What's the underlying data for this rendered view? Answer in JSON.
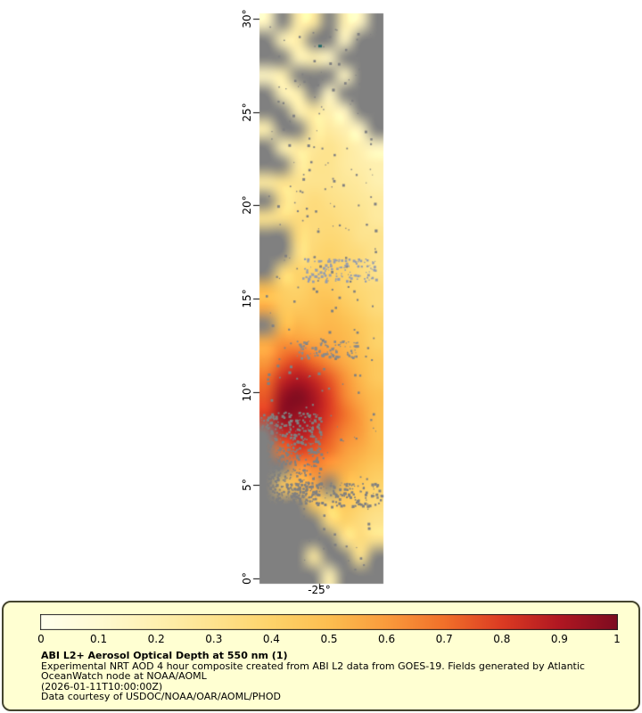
{
  "axes": {
    "lon_label": "-25°"
  },
  "legend": {
    "title": "ABI L2+ Aerosol Optical Depth at 550 nm (1)",
    "lines": [
      "Experimental NRT AOD 4 hour composite created from ABI L2 data from GOES-19. Fields generated by Atlantic",
      "OceanWatch node at NOAA/AOML",
      "(2026-01-11T10:00:00Z)",
      "Data courtesy of USDOC/NOAA/OAR/AOML/PHOD"
    ],
    "box_bg": "#FFFFD2",
    "box_border": "#44442E",
    "text_color": "#000000"
  },
  "chart_data": {
    "type": "heatmap",
    "title": "ABI L2+ Aerosol Optical Depth at 550 nm (1)",
    "subtitle": "Experimental NRT AOD 4 hour composite created from ABI L2 data from GOES-19. Fields generated by Atlantic OceanWatch node at NOAA/AOML",
    "timestamp": "(2026-01-11T10:00:00Z)",
    "credit": "Data courtesy of USDOC/NOAA/OAR/AOML/PHOD",
    "lat_ticks": [
      30,
      25,
      20,
      15,
      10,
      5,
      0
    ],
    "lat_tick_labels": [
      "30°",
      "25°",
      "20°",
      "15°",
      "10°",
      "5°",
      "0°"
    ],
    "lon_tick": -25,
    "lon_tick_label": "-25°",
    "lat_range": [
      0,
      30
    ],
    "colorbar": {
      "min": 0,
      "max": 1,
      "tick_labels": [
        "0",
        "0.1",
        "0.2",
        "0.3",
        "0.4",
        "0.5",
        "0.6",
        "0.7",
        "0.8",
        "0.9",
        "1"
      ]
    },
    "no_data_color": "#808080",
    "colormap_stops": [
      [
        0.0,
        "#FFFFEE"
      ],
      [
        0.1,
        "#FFFAD2"
      ],
      [
        0.2,
        "#FEF0B0"
      ],
      [
        0.3,
        "#FDE38E"
      ],
      [
        0.4,
        "#FDD36A"
      ],
      [
        0.5,
        "#FCBE50"
      ],
      [
        0.6,
        "#FA9B3C"
      ],
      [
        0.7,
        "#F1702A"
      ],
      [
        0.8,
        "#DC3B23"
      ],
      [
        0.9,
        "#B01722"
      ],
      [
        1.0,
        "#7E0C20"
      ]
    ],
    "grid": {
      "cols": 8,
      "rows": 32,
      "note": "Coarse AOD field sampled north (top) to south (bottom); null = no retrieval / cloud (gray).",
      "values": [
        [
          0.15,
          null,
          0.22,
          0.25,
          null,
          0.2,
          0.15,
          null
        ],
        [
          null,
          0.18,
          0.22,
          null,
          null,
          0.15,
          null,
          null
        ],
        [
          null,
          null,
          0.18,
          0.2,
          0.15,
          null,
          null,
          null
        ],
        [
          0.15,
          0.2,
          null,
          null,
          null,
          0.15,
          null,
          null
        ],
        [
          null,
          0.18,
          0.2,
          null,
          0.15,
          null,
          null,
          null
        ],
        [
          null,
          null,
          0.2,
          0.25,
          0.2,
          0.15,
          null,
          null
        ],
        [
          0.2,
          null,
          null,
          0.25,
          0.25,
          0.2,
          0.15,
          null
        ],
        [
          null,
          0.2,
          0.25,
          0.27,
          0.3,
          0.25,
          0.2,
          0.15
        ],
        [
          null,
          null,
          0.25,
          0.3,
          0.3,
          0.25,
          0.22,
          0.2
        ],
        [
          0.25,
          0.3,
          0.3,
          0.3,
          0.3,
          0.27,
          0.25,
          0.2
        ],
        [
          null,
          0.3,
          0.3,
          0.35,
          0.32,
          0.3,
          0.27,
          0.25
        ],
        [
          0.3,
          0.32,
          0.35,
          0.35,
          0.35,
          0.32,
          0.3,
          0.25
        ],
        [
          null,
          null,
          0.35,
          0.35,
          0.37,
          0.35,
          0.3,
          0.3
        ],
        [
          null,
          null,
          0.32,
          0.37,
          0.4,
          0.37,
          0.35,
          0.3
        ],
        [
          null,
          0.35,
          0.4,
          0.4,
          0.42,
          0.4,
          0.35,
          0.3
        ],
        [
          0.5,
          0.42,
          0.4,
          0.45,
          0.45,
          0.4,
          0.37,
          0.35
        ],
        [
          0.55,
          0.45,
          0.45,
          0.47,
          0.5,
          0.45,
          0.4,
          0.35
        ],
        [
          null,
          0.5,
          0.52,
          0.5,
          0.52,
          0.5,
          0.45,
          0.4
        ],
        [
          0.55,
          0.62,
          0.6,
          0.57,
          0.55,
          0.52,
          0.47,
          0.4
        ],
        [
          0.6,
          0.72,
          0.78,
          0.7,
          0.62,
          0.55,
          0.5,
          0.45
        ],
        [
          0.7,
          0.85,
          0.9,
          0.85,
          0.75,
          0.62,
          0.52,
          0.45
        ],
        [
          0.75,
          0.95,
          1.0,
          0.92,
          0.8,
          0.65,
          0.55,
          0.5
        ],
        [
          0.8,
          0.97,
          0.95,
          0.9,
          0.8,
          0.7,
          0.6,
          0.5
        ],
        [
          null,
          0.85,
          0.9,
          0.85,
          0.75,
          0.65,
          0.6,
          0.5
        ],
        [
          null,
          0.7,
          0.8,
          0.75,
          0.7,
          0.6,
          0.55,
          0.5
        ],
        [
          null,
          null,
          0.6,
          0.65,
          0.6,
          0.55,
          0.5,
          0.45
        ],
        [
          null,
          0.45,
          0.5,
          0.55,
          null,
          0.5,
          0.45,
          0.4
        ],
        [
          null,
          null,
          null,
          0.45,
          0.4,
          0.45,
          0.4,
          0.35
        ],
        [
          null,
          null,
          null,
          null,
          0.35,
          0.4,
          0.35,
          0.3
        ],
        [
          null,
          null,
          null,
          null,
          null,
          0.3,
          0.35,
          0.3
        ],
        [
          null,
          null,
          null,
          0.25,
          null,
          null,
          0.3,
          null
        ],
        [
          null,
          null,
          null,
          null,
          0.2,
          null,
          null,
          null
        ]
      ]
    }
  }
}
